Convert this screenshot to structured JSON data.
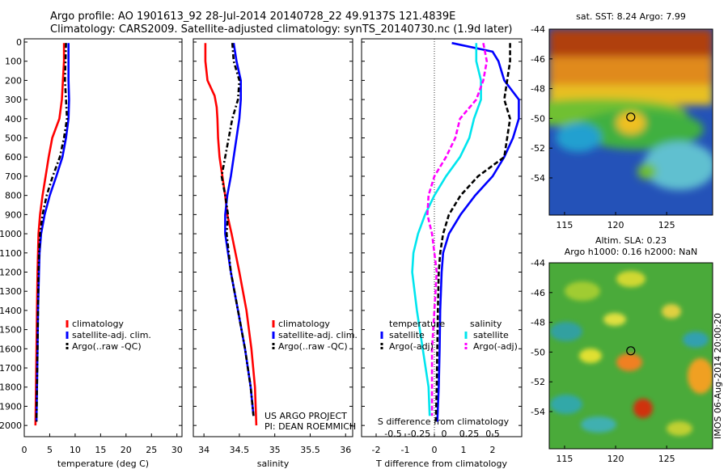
{
  "header": {
    "line1": "Argo profile: AO 1901613_92 28-Jul-2014 20140728_22 49.9137S 121.4839E",
    "line2": "Climatology: CARS2009. Satellite-adjusted climatology: synTS_20140730.nc (1.9d later)"
  },
  "panels": {
    "temperature": {
      "xlabel": "temperature (deg C)"
    },
    "salinity": {
      "xlabel": "salinity",
      "credit1": "US ARGO PROJECT",
      "credit2": "PI: DEAN ROEMMICH"
    },
    "difference": {
      "xlabel": "T difference from climatology",
      "s_label": "S difference from climatology"
    }
  },
  "legends": {
    "temperature": [
      "climatology",
      "satellite-adj. clim.",
      "Argo(..raw -QC)"
    ],
    "salinity": [
      "climatology",
      "satellite-adj. clim.",
      "Argo(..raw -QC)"
    ],
    "diff_t_title": "temperature",
    "diff_s_title": "salinity",
    "diff_t": [
      "satellite",
      "Argo(-adj)"
    ],
    "diff_s": [
      "satellite",
      "Argo(-adj)"
    ]
  },
  "maps": {
    "sst_title": "sat. SST: 8.24 Argo: 7.99",
    "sla_title1": "Altim. SLA: 0.23",
    "sla_title2": "Argo h1000: 0.16 h2000: NaN",
    "ylabels": [
      "-44",
      "-46",
      "-48",
      "-50",
      "-52",
      "-54"
    ],
    "xlabels": [
      "115",
      "120",
      "125"
    ],
    "side_label": "IMOS 06-Aug-2014 20:00:20",
    "float_position": {
      "lon": 121.4839,
      "lat": -49.9137
    }
  },
  "colors": {
    "climatology": "#ff0000",
    "satellite": "#0000ff",
    "argo": "#000000",
    "sal_sat": "#00e5ee",
    "sal_argo": "#ff00ff"
  },
  "chart_data": [
    {
      "type": "line",
      "title": "",
      "xlabel": "temperature (deg C)",
      "ylabel": "",
      "xlim": [
        0,
        31
      ],
      "ylim": [
        2050,
        0
      ],
      "xticks": [
        "0",
        "5",
        "10",
        "15",
        "20",
        "25",
        "30"
      ],
      "yticks": [
        "0",
        "100",
        "200",
        "300",
        "400",
        "500",
        "600",
        "700",
        "800",
        "900",
        "1000",
        "1100",
        "1200",
        "1300",
        "1400",
        "1500",
        "1600",
        "1700",
        "1800",
        "1900",
        "2000"
      ],
      "series": [
        {
          "name": "climatology",
          "depth": [
            5,
            100,
            200,
            300,
            400,
            500,
            600,
            700,
            800,
            900,
            1000,
            1100,
            1200,
            1400,
            1600,
            1800,
            2000
          ],
          "values": [
            7.8,
            7.8,
            7.6,
            7.4,
            6.9,
            5.5,
            4.8,
            4.2,
            3.6,
            3.1,
            2.8,
            2.7,
            2.6,
            2.5,
            2.4,
            2.3,
            2.2
          ]
        },
        {
          "name": "satellite-adj. clim.",
          "depth": [
            5,
            100,
            200,
            300,
            400,
            500,
            600,
            700,
            800,
            900,
            1000,
            1100,
            1200,
            1400,
            1600,
            1800,
            1980
          ],
          "values": [
            8.7,
            8.7,
            8.7,
            8.8,
            8.7,
            8.2,
            7.5,
            6.3,
            5.0,
            4.0,
            3.3,
            3.0,
            2.9,
            2.7,
            2.6,
            2.5,
            2.4
          ]
        },
        {
          "name": "Argo(..raw -QC)",
          "depth": [
            5,
            100,
            200,
            300,
            400,
            500,
            600,
            700,
            800,
            900,
            1000,
            1100,
            1200,
            1400,
            1600,
            1800,
            1980
          ],
          "values": [
            8.2,
            8.1,
            8.0,
            8.2,
            8.4,
            7.8,
            7.0,
            5.6,
            4.4,
            3.6,
            3.1,
            2.9,
            2.8,
            2.7,
            2.6,
            2.5,
            2.4
          ]
        }
      ]
    },
    {
      "type": "line",
      "title": "",
      "xlabel": "salinity",
      "ylabel": "",
      "xlim": [
        33.85,
        36.1
      ],
      "ylim": [
        2050,
        0
      ],
      "xticks": [
        "34",
        "34.5",
        "35",
        "35.5",
        "36"
      ],
      "series": [
        {
          "name": "climatology",
          "depth": [
            5,
            100,
            200,
            280,
            340,
            400,
            500,
            600,
            700,
            800,
            900,
            1000,
            1200,
            1400,
            1600,
            1800,
            2000
          ],
          "values": [
            34.02,
            34.02,
            34.05,
            34.15,
            34.18,
            34.19,
            34.2,
            34.22,
            34.26,
            34.3,
            34.33,
            34.39,
            34.5,
            34.6,
            34.67,
            34.72,
            34.74
          ]
        },
        {
          "name": "satellite-adj. clim.",
          "depth": [
            5,
            100,
            200,
            300,
            400,
            500,
            600,
            700,
            800,
            900,
            1000,
            1200,
            1400,
            1600,
            1800,
            1950
          ],
          "values": [
            34.42,
            34.46,
            34.52,
            34.52,
            34.5,
            34.46,
            34.42,
            34.38,
            34.33,
            34.3,
            34.3,
            34.38,
            34.48,
            34.58,
            34.66,
            34.7
          ]
        },
        {
          "name": "Argo(..raw -QC)",
          "depth": [
            5,
            100,
            200,
            300,
            400,
            500,
            600,
            700,
            800,
            900,
            1000,
            1200,
            1400,
            1600,
            1800,
            1950
          ],
          "values": [
            34.4,
            34.42,
            34.5,
            34.48,
            34.4,
            34.35,
            34.3,
            34.25,
            34.3,
            34.34,
            34.32,
            34.38,
            34.48,
            34.58,
            34.66,
            34.7
          ]
        }
      ]
    },
    {
      "type": "line",
      "title": "",
      "xlabel": "T difference from climatology",
      "ylabel": "S difference from climatology",
      "xlim": [
        -2.5,
        3
      ],
      "ylim": [
        2050,
        0
      ],
      "xticks": [
        "-2",
        "-1",
        "0",
        "1",
        "2"
      ],
      "s_xticks": [
        "-0.5",
        "-0.25",
        "0",
        "0.25",
        "0.5"
      ],
      "series": [
        {
          "name": "satellite",
          "group": "temperature",
          "depth": [
            5,
            50,
            100,
            200,
            300,
            400,
            500,
            600,
            700,
            800,
            900,
            1000,
            1100,
            1200,
            1400,
            1600,
            1800,
            1980
          ],
          "values": [
            0.6,
            2.0,
            2.2,
            2.4,
            2.9,
            2.9,
            2.7,
            2.4,
            2.0,
            1.4,
            0.9,
            0.5,
            0.3,
            0.25,
            0.2,
            0.18,
            0.15,
            0.1
          ]
        },
        {
          "name": "Argo(-adj)",
          "group": "temperature",
          "depth": [
            5,
            100,
            200,
            300,
            400,
            500,
            600,
            700,
            800,
            900,
            1000,
            1100,
            1200,
            1400,
            1600,
            1800,
            1980
          ],
          "values": [
            2.6,
            2.6,
            2.5,
            2.4,
            2.6,
            2.5,
            2.4,
            1.5,
            0.9,
            0.5,
            0.3,
            0.2,
            0.15,
            0.12,
            0.1,
            0.08,
            0.05
          ]
        },
        {
          "name": "satellite",
          "group": "salinity",
          "depth": [
            5,
            100,
            200,
            300,
            400,
            500,
            600,
            700,
            800,
            900,
            1000,
            1100,
            1200,
            1400,
            1600,
            1800,
            1950
          ],
          "values": [
            0.36,
            0.36,
            0.4,
            0.4,
            0.34,
            0.3,
            0.22,
            0.1,
            0.0,
            -0.08,
            -0.14,
            -0.18,
            -0.19,
            -0.15,
            -0.1,
            -0.05,
            -0.04
          ]
        },
        {
          "name": "Argo(-adj)",
          "group": "salinity",
          "depth": [
            5,
            100,
            200,
            300,
            400,
            500,
            600,
            700,
            800,
            900,
            1000,
            1200,
            1400,
            1600,
            1800,
            1950
          ],
          "values": [
            0.42,
            0.45,
            0.42,
            0.36,
            0.22,
            0.18,
            0.1,
            0.0,
            -0.05,
            -0.06,
            -0.02,
            0.02,
            0.0,
            -0.02,
            -0.02,
            -0.02
          ]
        }
      ]
    }
  ]
}
